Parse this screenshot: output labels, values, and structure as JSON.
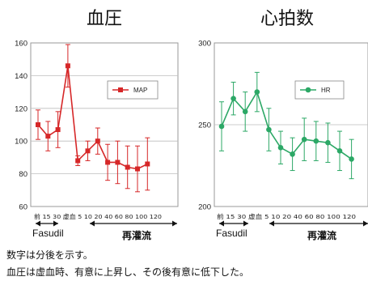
{
  "chart_data": [
    {
      "type": "line",
      "title": "血圧",
      "color": "#d62728",
      "ylim": [
        60,
        160
      ],
      "yticks": [
        "60",
        "80",
        "100",
        "120",
        "140",
        "160"
      ],
      "categories": [
        "前",
        "15",
        "30",
        "虚血",
        "5",
        "10",
        "20",
        "40",
        "60",
        "80",
        "100",
        "120"
      ],
      "tick_label_text": "前 15 30 虚血 5 10 20 40 60 80 100 120",
      "grid": "horizontal",
      "legend_position": "top-right",
      "series": [
        {
          "name": "MAP",
          "values": [
            110,
            103,
            107,
            146,
            88,
            94,
            100,
            87,
            87,
            84,
            83,
            86
          ],
          "error": [
            9,
            9,
            11,
            13,
            3,
            6,
            8,
            11,
            13,
            13,
            14,
            16
          ]
        }
      ],
      "phases": [
        {
          "label": "Fasudil",
          "from_index": 0,
          "to_index": 2
        },
        {
          "label": "再灌流",
          "from_index": 4,
          "to_index": 11
        }
      ]
    },
    {
      "type": "line",
      "title": "心拍数",
      "color": "#2ca866",
      "ylim": [
        200,
        300
      ],
      "yticks": [
        "200",
        "250",
        "300"
      ],
      "categories": [
        "前",
        "15",
        "30",
        "虚血",
        "5",
        "10",
        "20",
        "40",
        "60",
        "80",
        "100",
        "120"
      ],
      "tick_label_text": "前 15 30 虚血 5 10 20 40 60 80 100 120",
      "grid": "horizontal",
      "legend_position": "top-right",
      "series": [
        {
          "name": "HR",
          "values": [
            249,
            266,
            258,
            270,
            247,
            236,
            232,
            241,
            240,
            239,
            234,
            229
          ],
          "error": [
            15,
            10,
            12,
            12,
            13,
            10,
            10,
            13,
            12,
            12,
            12,
            12
          ]
        }
      ],
      "phases": [
        {
          "label": "Fasudil",
          "from_index": 0,
          "to_index": 2
        },
        {
          "label": "再灌流",
          "from_index": 4,
          "to_index": 11
        }
      ]
    }
  ],
  "notes": [
    "数字は分後を示す。",
    "血圧は虚血時、有意に上昇し、その後有意に低下した。"
  ]
}
